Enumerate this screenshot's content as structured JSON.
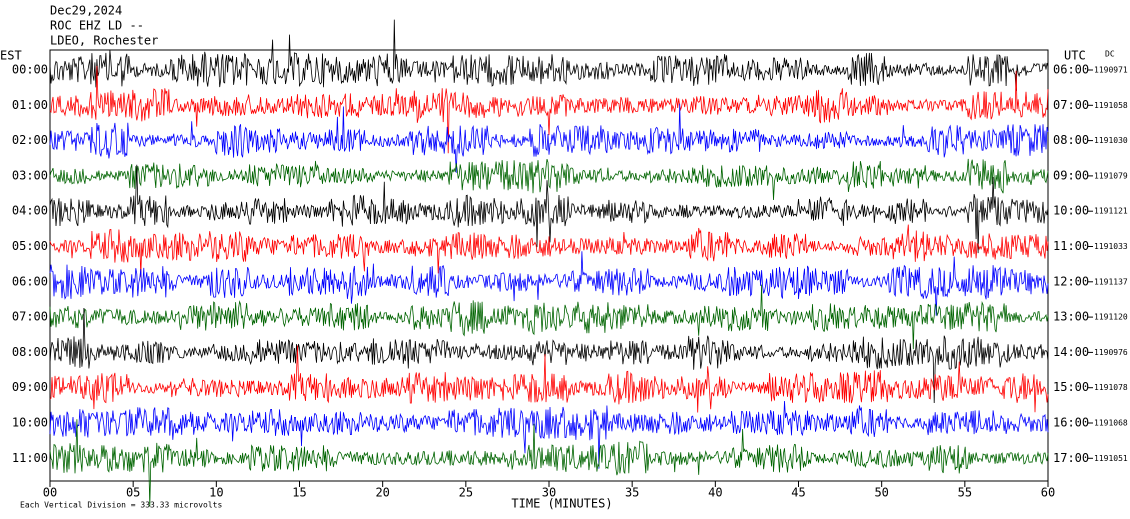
{
  "chart_data": {
    "type": "helicorder",
    "title_lines": [
      "Dec29,2024",
      "ROC EHZ LD --",
      "LDEO, Rochester"
    ],
    "left_axis_label": "EST",
    "right_axis_label": "UTC",
    "dc_label": "DC",
    "xlabel": "TIME (MINUTES)",
    "footer": "Each Vertical Division =  333.33 microvolts",
    "xlim": [
      0,
      60
    ],
    "xticks": [
      {
        "value": 0,
        "label": "00"
      },
      {
        "value": 5,
        "label": "05"
      },
      10,
      15,
      20,
      25,
      30,
      35,
      40,
      45,
      50,
      55,
      60
    ],
    "colors": [
      "#000000",
      "#ff0000",
      "#0000ff",
      "#006400"
    ],
    "rows": [
      {
        "est": "00:00",
        "utc": "06:00",
        "dc": 1190971
      },
      {
        "est": "01:00",
        "utc": "07:00",
        "dc": 1191058
      },
      {
        "est": "02:00",
        "utc": "08:00",
        "dc": 1191030
      },
      {
        "est": "03:00",
        "utc": "09:00",
        "dc": 1191079
      },
      {
        "est": "04:00",
        "utc": "10:00",
        "dc": 1191121
      },
      {
        "est": "05:00",
        "utc": "11:00",
        "dc": 1191033
      },
      {
        "est": "06:00",
        "utc": "12:00",
        "dc": 1191137
      },
      {
        "est": "07:00",
        "utc": "13:00",
        "dc": 1191120
      },
      {
        "est": "08:00",
        "utc": "14:00",
        "dc": 1190976
      },
      {
        "est": "09:00",
        "utc": "15:00",
        "dc": 1191078
      },
      {
        "est": "10:00",
        "utc": "16:00",
        "dc": 1191068
      },
      {
        "est": "11:00",
        "utc": "17:00",
        "dc": 1191051
      }
    ]
  }
}
